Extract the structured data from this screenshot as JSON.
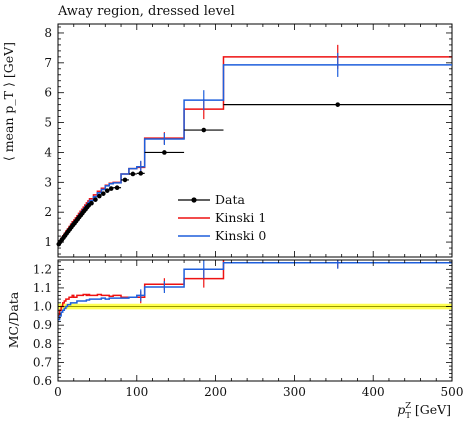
{
  "chart_data": [
    {
      "type": "line",
      "title": "Away region, dressed level",
      "ylabel": "⟨ mean p_T ⟩ [GeV]",
      "xlabel": "",
      "xlim": [
        0,
        500
      ],
      "ylim": [
        0.5,
        8.3
      ],
      "yticks": [
        1,
        2,
        3,
        4,
        5,
        6,
        7,
        8
      ],
      "legend_position": "center",
      "bin_edges": [
        0,
        2,
        4,
        6,
        8,
        10,
        12,
        14,
        16,
        18,
        20,
        22,
        24,
        26,
        28,
        30,
        32,
        34,
        36,
        38,
        40,
        45,
        50,
        55,
        60,
        65,
        70,
        80,
        90,
        100,
        110,
        160,
        210,
        500
      ],
      "series": [
        {
          "name": "Data",
          "color": "#000000",
          "style": "points",
          "values": [
            0.93,
            1.01,
            1.08,
            1.15,
            1.22,
            1.29,
            1.36,
            1.43,
            1.5,
            1.57,
            1.63,
            1.7,
            1.77,
            1.84,
            1.9,
            1.97,
            2.04,
            2.1,
            2.17,
            2.23,
            2.3,
            2.42,
            2.54,
            2.62,
            2.72,
            2.79,
            2.82,
            3.08,
            3.28,
            3.3,
            4.0,
            4.75,
            5.6
          ]
        },
        {
          "name": "Kinski 1",
          "color": "#ee1111",
          "style": "step",
          "values": [
            0.97,
            1.05,
            1.13,
            1.21,
            1.29,
            1.37,
            1.44,
            1.52,
            1.6,
            1.68,
            1.74,
            1.81,
            1.88,
            1.96,
            2.03,
            2.1,
            2.17,
            2.24,
            2.31,
            2.38,
            2.45,
            2.58,
            2.7,
            2.8,
            2.9,
            2.97,
            3.0,
            3.28,
            3.46,
            3.5,
            4.48,
            5.45,
            7.2
          ]
        },
        {
          "name": "Kinski 0",
          "color": "#1e5fdc",
          "style": "step",
          "values": [
            0.9,
            0.98,
            1.06,
            1.14,
            1.22,
            1.3,
            1.38,
            1.46,
            1.54,
            1.62,
            1.68,
            1.75,
            1.82,
            1.9,
            1.97,
            2.04,
            2.11,
            2.18,
            2.25,
            2.32,
            2.39,
            2.52,
            2.65,
            2.76,
            2.88,
            2.95,
            2.98,
            3.28,
            3.46,
            3.52,
            4.45,
            5.75,
            6.93
          ]
        }
      ]
    },
    {
      "type": "line",
      "ylabel": "MC/Data",
      "xlabel": "p_T^Z [GeV]",
      "xlim": [
        0,
        500
      ],
      "ylim": [
        0.6,
        1.25
      ],
      "xticks": [
        0,
        100,
        200,
        300,
        400,
        500
      ],
      "yticks": [
        0.6,
        0.7,
        0.8,
        0.9,
        1.0,
        1.1,
        1.2
      ],
      "ytick_labels": [
        "0.6",
        "0.7",
        "0.8",
        "0.9",
        "1.0",
        "1.1",
        "1.2"
      ],
      "reference_band": {
        "center": 1.0,
        "low": 0.985,
        "high": 1.015,
        "color": "#ffff33"
      },
      "bin_edges": [
        0,
        2,
        4,
        6,
        8,
        10,
        12,
        14,
        16,
        18,
        20,
        22,
        24,
        26,
        28,
        30,
        32,
        34,
        36,
        38,
        40,
        45,
        50,
        55,
        60,
        65,
        70,
        80,
        90,
        100,
        110,
        160,
        210,
        500
      ],
      "series": [
        {
          "name": "Kinski 1",
          "color": "#ee1111",
          "values": [
            0.95,
            0.98,
            1.0,
            1.02,
            1.03,
            1.04,
            1.04,
            1.05,
            1.05,
            1.06,
            1.05,
            1.05,
            1.06,
            1.06,
            1.06,
            1.06,
            1.065,
            1.065,
            1.06,
            1.065,
            1.06,
            1.06,
            1.065,
            1.06,
            1.06,
            1.055,
            1.06,
            1.05,
            1.05,
            1.05,
            1.12,
            1.15,
            1.285
          ]
        },
        {
          "name": "Kinski 0",
          "color": "#1e5fdc",
          "values": [
            0.93,
            0.95,
            0.97,
            0.98,
            0.99,
            1.0,
            1.01,
            1.01,
            1.02,
            1.02,
            1.02,
            1.02,
            1.03,
            1.03,
            1.03,
            1.03,
            1.03,
            1.03,
            1.035,
            1.035,
            1.04,
            1.04,
            1.04,
            1.045,
            1.04,
            1.045,
            1.045,
            1.045,
            1.05,
            1.06,
            1.105,
            1.2,
            1.235
          ]
        }
      ]
    }
  ]
}
